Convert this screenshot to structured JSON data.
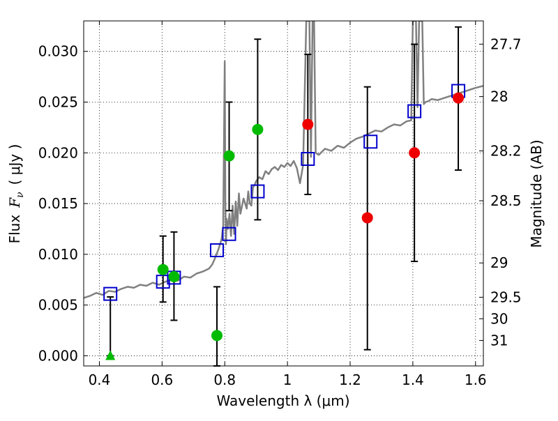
{
  "chart_data": {
    "type": "scatter",
    "title": "",
    "xlabel": "Wavelength  λ (μm)",
    "ylabel_left_prefix": "Flux",
    "ylabel_left_symbol": "F",
    "ylabel_left_subscript": "ν",
    "ylabel_left_unit": "( μJy )",
    "ylabel_right": "Magnitude (AB)",
    "xlim": [
      0.35,
      1.625
    ],
    "ylim": [
      -0.001,
      0.033
    ],
    "grid": true,
    "x_ticks": [
      {
        "value": 0.4,
        "label": "0.4"
      },
      {
        "value": 0.6,
        "label": "0.6"
      },
      {
        "value": 0.8,
        "label": "0.8"
      },
      {
        "value": 1.0,
        "label": "1"
      },
      {
        "value": 1.2,
        "label": "1.2"
      },
      {
        "value": 1.4,
        "label": "1.4"
      },
      {
        "value": 1.6,
        "label": "1.6"
      }
    ],
    "y_ticks": [
      {
        "value": 0.0,
        "label": "0.000"
      },
      {
        "value": 0.005,
        "label": "0.005"
      },
      {
        "value": 0.01,
        "label": "0.010"
      },
      {
        "value": 0.015,
        "label": "0.015"
      },
      {
        "value": 0.02,
        "label": "0.020"
      },
      {
        "value": 0.025,
        "label": "0.025"
      },
      {
        "value": 0.03,
        "label": "0.030"
      }
    ],
    "right_ticks": [
      {
        "flux": 0.03071,
        "label": "27.7"
      },
      {
        "flux": 0.02554,
        "label": "28"
      },
      {
        "flux": 0.02019,
        "label": "28.2"
      },
      {
        "flux": 0.01528,
        "label": "28.5"
      },
      {
        "flux": 0.00915,
        "label": "29"
      },
      {
        "flux": 0.00577,
        "label": "29.5"
      },
      {
        "flux": 0.00365,
        "label": "30"
      },
      {
        "flux": 0.00151,
        "label": "31"
      }
    ],
    "series": [
      {
        "marker": "open-square",
        "color": "#0000cc",
        "points": [
          {
            "x": 0.435,
            "y": 0.0061
          },
          {
            "x": 0.603,
            "y": 0.0073
          },
          {
            "x": 0.638,
            "y": 0.0077
          },
          {
            "x": 0.775,
            "y": 0.0104
          },
          {
            "x": 0.814,
            "y": 0.012
          },
          {
            "x": 0.905,
            "y": 0.0162
          },
          {
            "x": 1.065,
            "y": 0.0194
          },
          {
            "x": 1.265,
            "y": 0.0211
          },
          {
            "x": 1.405,
            "y": 0.0241
          },
          {
            "x": 1.545,
            "y": 0.0261
          }
        ]
      },
      {
        "marker": "filled-circle",
        "color": "#00bb00",
        "points": [
          {
            "x": 0.603,
            "y": 0.0085
          },
          {
            "x": 0.638,
            "y": 0.0078
          },
          {
            "x": 0.775,
            "y": 0.002
          },
          {
            "x": 0.814,
            "y": 0.0197
          },
          {
            "x": 0.905,
            "y": 0.0223
          }
        ]
      },
      {
        "marker": "filled-triangle",
        "color": "#00bb00",
        "points": [
          {
            "x": 0.435,
            "y": 0.0
          }
        ]
      },
      {
        "marker": "filled-circle",
        "color": "#ee0000",
        "points": [
          {
            "x": 1.065,
            "y": 0.0228
          },
          {
            "x": 1.255,
            "y": 0.0136
          },
          {
            "x": 1.405,
            "y": 0.02
          },
          {
            "x": 1.545,
            "y": 0.0254
          }
        ]
      }
    ],
    "errorbars": [
      {
        "x": 0.435,
        "low": 0.0,
        "high": 0.0058
      },
      {
        "x": 0.603,
        "low": 0.0053,
        "high": 0.0118
      },
      {
        "x": 0.638,
        "low": 0.0035,
        "high": 0.0122
      },
      {
        "x": 0.775,
        "low": -0.001,
        "high": 0.0068
      },
      {
        "x": 0.814,
        "low": 0.0143,
        "high": 0.025
      },
      {
        "x": 0.905,
        "low": 0.0134,
        "high": 0.0312
      },
      {
        "x": 1.065,
        "low": 0.0159,
        "high": 0.0297
      },
      {
        "x": 1.255,
        "low": 0.0006,
        "high": 0.0265
      },
      {
        "x": 1.405,
        "low": 0.0093,
        "high": 0.0307
      },
      {
        "x": 1.545,
        "low": 0.0183,
        "high": 0.0324
      }
    ],
    "model_spectrum": {
      "color": "#808080",
      "x": [
        0.35,
        0.37,
        0.39,
        0.41,
        0.43,
        0.45,
        0.47,
        0.49,
        0.51,
        0.53,
        0.55,
        0.57,
        0.59,
        0.61,
        0.63,
        0.65,
        0.67,
        0.69,
        0.71,
        0.73,
        0.75,
        0.76,
        0.77,
        0.78,
        0.79,
        0.795,
        0.8,
        0.802,
        0.804,
        0.806,
        0.81,
        0.815,
        0.82,
        0.825,
        0.83,
        0.835,
        0.84,
        0.845,
        0.85,
        0.86,
        0.87,
        0.875,
        0.88,
        0.885,
        0.89,
        0.895,
        0.9,
        0.91,
        0.92,
        0.93,
        0.94,
        0.95,
        0.96,
        0.97,
        0.98,
        0.99,
        1.0,
        1.01,
        1.02,
        1.03,
        1.04,
        1.05,
        1.06,
        1.065,
        1.07,
        1.075,
        1.08,
        1.085,
        1.09,
        1.1,
        1.12,
        1.14,
        1.16,
        1.18,
        1.2,
        1.22,
        1.24,
        1.26,
        1.28,
        1.3,
        1.32,
        1.34,
        1.36,
        1.38,
        1.395,
        1.4,
        1.405,
        1.41,
        1.415,
        1.42,
        1.425,
        1.43,
        1.435,
        1.44,
        1.45,
        1.46,
        1.48,
        1.5,
        1.52,
        1.54,
        1.56,
        1.58,
        1.6,
        1.625
      ],
      "y": [
        0.0057,
        0.0059,
        0.0062,
        0.006,
        0.0064,
        0.0063,
        0.0066,
        0.0068,
        0.0067,
        0.007,
        0.0069,
        0.0072,
        0.007,
        0.0073,
        0.0075,
        0.0074,
        0.0078,
        0.0077,
        0.0081,
        0.0083,
        0.0086,
        0.009,
        0.0097,
        0.0105,
        0.0115,
        0.0128,
        0.029,
        0.015,
        0.011,
        0.0135,
        0.0125,
        0.014,
        0.0118,
        0.0148,
        0.012,
        0.0152,
        0.0128,
        0.016,
        0.014,
        0.0155,
        0.0145,
        0.0162,
        0.015,
        0.0148,
        0.0166,
        0.0168,
        0.0172,
        0.0176,
        0.0174,
        0.0182,
        0.0179,
        0.0184,
        0.0186,
        0.0183,
        0.0188,
        0.0186,
        0.019,
        0.0187,
        0.0192,
        0.0185,
        0.017,
        0.0188,
        0.033,
        0.033,
        0.033,
        0.0196,
        0.033,
        0.033,
        0.02,
        0.0198,
        0.0204,
        0.0202,
        0.0207,
        0.0205,
        0.021,
        0.0214,
        0.0216,
        0.0219,
        0.0222,
        0.0221,
        0.0225,
        0.0228,
        0.0227,
        0.0231,
        0.0232,
        0.033,
        0.033,
        0.033,
        0.0245,
        0.033,
        0.033,
        0.033,
        0.0248,
        0.025,
        0.0251,
        0.0253,
        0.0252,
        0.0254,
        0.0256,
        0.0258,
        0.026,
        0.0262,
        0.0264,
        0.0266
      ]
    }
  }
}
